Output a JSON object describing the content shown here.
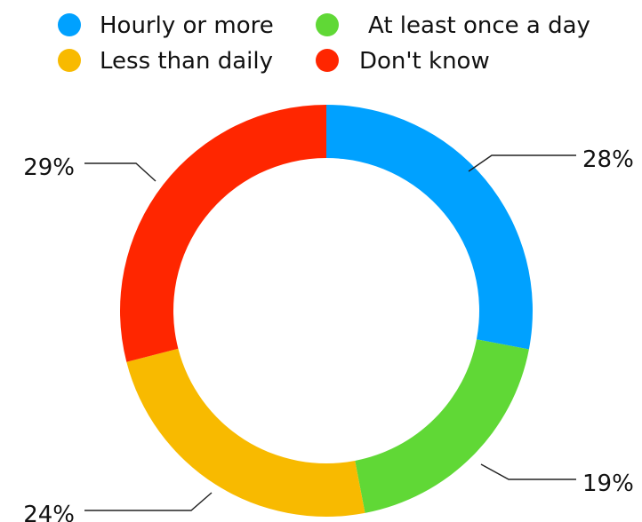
{
  "chart_data": {
    "type": "pie",
    "donut": true,
    "categories": [
      "Hourly or more",
      "At least once a day",
      "Less than daily",
      "Don't know"
    ],
    "values": [
      28,
      19,
      24,
      29
    ],
    "value_labels": [
      "28%",
      "19%",
      "24%",
      "29%"
    ],
    "colors": [
      "#00a1ff",
      "#60d836",
      "#f8ba00",
      "#ff2600"
    ],
    "legend": {
      "placement": "top",
      "columns": 2
    },
    "start_angle": "12 o'clock",
    "direction": "clockwise"
  }
}
